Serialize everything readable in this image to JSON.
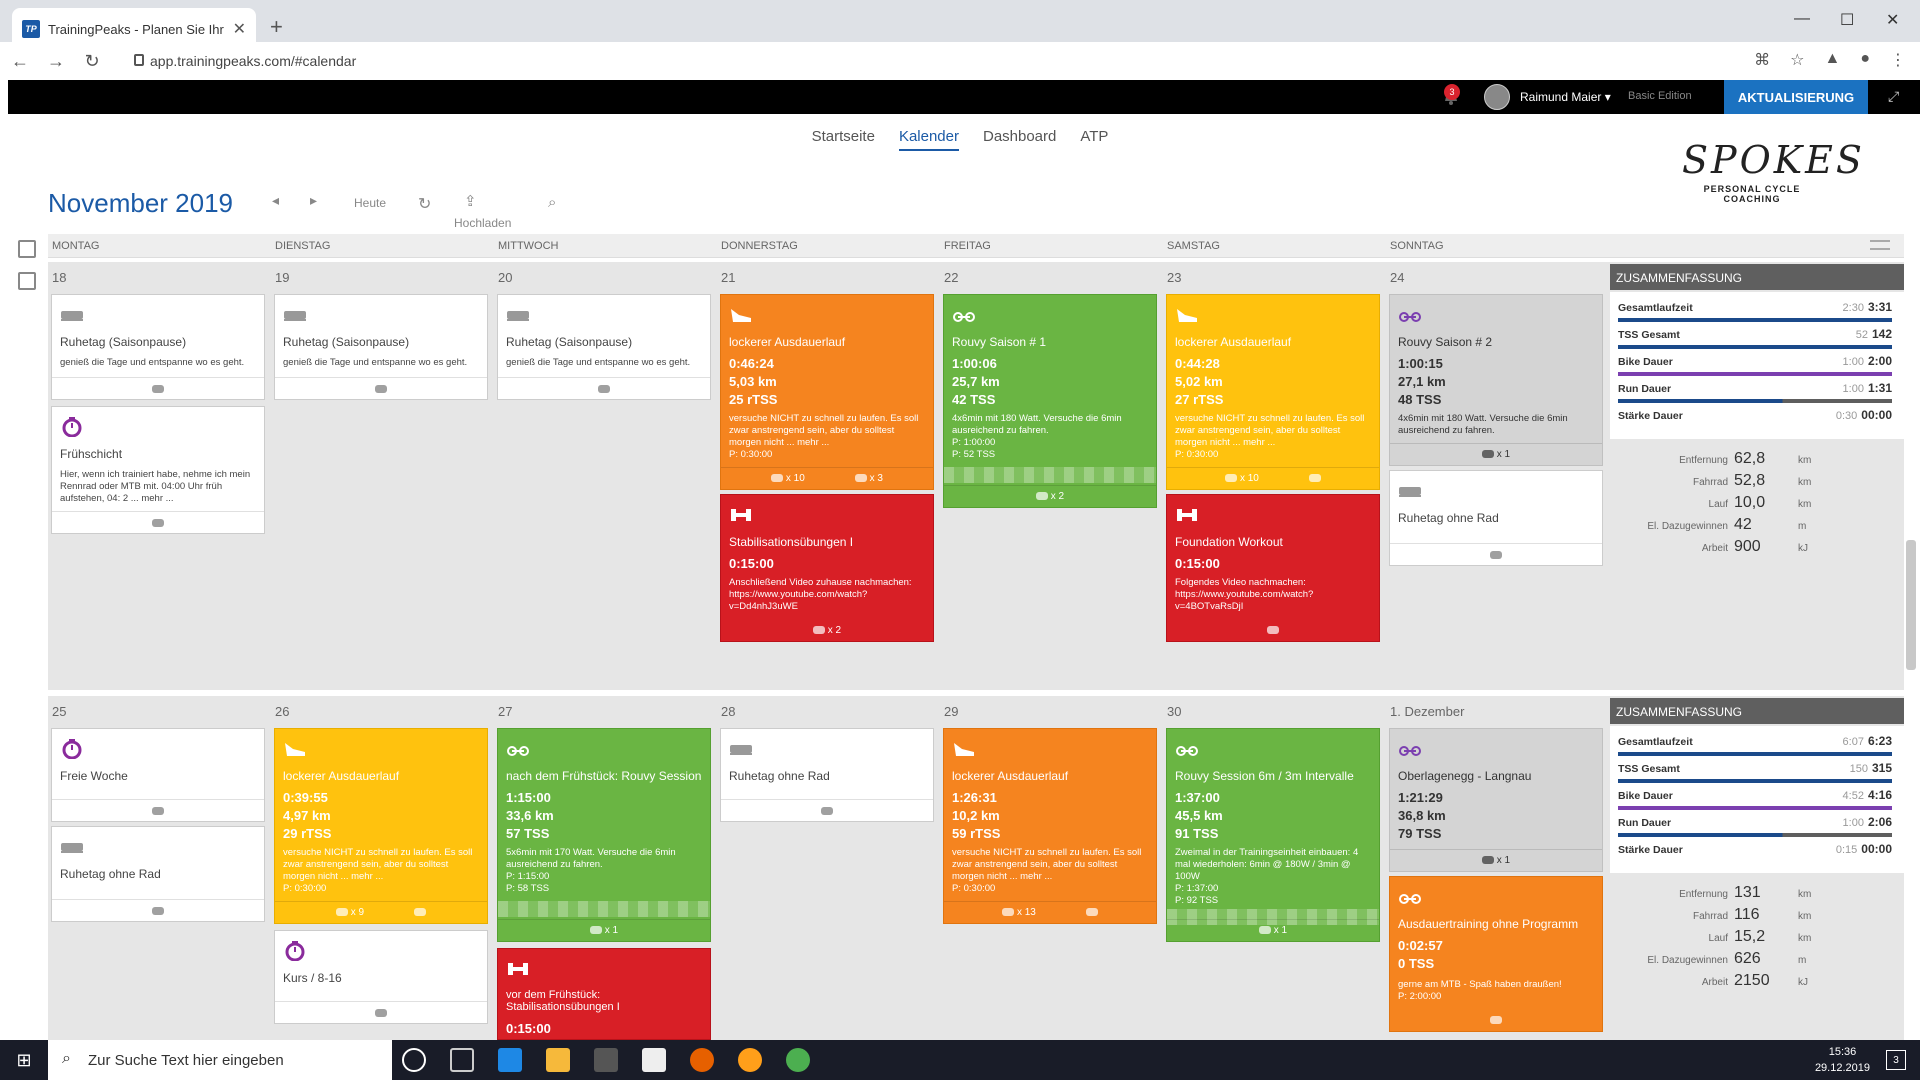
{
  "browser": {
    "tab_title": "TrainingPeaks - Planen Sie Ihr Tra",
    "favicon": "TP",
    "url": "app.trainingpeaks.com/#calendar"
  },
  "topbar": {
    "notifications": "3",
    "user": "Raimund Maier",
    "edition": "Basic Edition",
    "upgrade": "AKTUALISIERUNG"
  },
  "nav": [
    "Startseite",
    "Kalender",
    "Dashboard",
    "ATP"
  ],
  "logo": {
    "main": "SPOKES",
    "sub": "PERSONAL CYCLE COACHING"
  },
  "calendar": {
    "month": "November",
    "year": "2019",
    "today": "Heute",
    "upload": "Hochladen",
    "weekdays": [
      "MONTAG",
      "DIENSTAG",
      "MITTWOCH",
      "DONNERSTAG",
      "FREITAG",
      "SAMSTAG",
      "SONNTAG"
    ],
    "summary_label": "ZUSAMMENFASSUNG",
    "week1": {
      "days": [
        "18",
        "19",
        "20",
        "21",
        "22",
        "23",
        "24"
      ],
      "cards": [
        {
          "type": "rest",
          "title": "Ruhetag (Saisonpause)",
          "desc": "genieß die Tage und entspanne wo es geht."
        },
        {
          "type": "other",
          "title": "Frühschicht",
          "desc": "Hier, wenn ich trainiert habe, nehme ich mein Rennrad oder MTB mit. 04:00 Uhr früh aufstehen, 04: 2 ... mehr ..."
        },
        {
          "type": "rest",
          "title": "Ruhetag (Saisonpause)",
          "desc": "genieß die Tage und entspanne wo es geht."
        },
        {
          "type": "rest",
          "title": "Ruhetag (Saisonpause)",
          "desc": "genieß die Tage und entspanne wo es geht."
        },
        {
          "type": "run",
          "title": "lockerer Ausdauerlauf",
          "time": "0:46:24",
          "dist": "5,03",
          "dist_unit": "km",
          "tss": "25",
          "tss_unit": "rTSS",
          "desc": "versuche NICHT zu schnell zu laufen. Es soll zwar anstrengend sein, aber du solltest morgen nicht ... mehr ...",
          "plan": "P: 0:30:00",
          "foot1": "x 10",
          "foot2": "x 3"
        },
        {
          "type": "strength",
          "title": "Stabilisationsübungen I",
          "time": "0:15:00",
          "desc": "Anschließend Video zuhause nachmachen: https://www.youtube.com/watch?v=Dd4nhJ3uWE",
          "foot": "x 2"
        },
        {
          "type": "bike",
          "title": "Rouvy Saison # 1",
          "time": "1:00:06",
          "dist": "25,7",
          "dist_unit": "km",
          "tss": "42",
          "tss_unit": "TSS",
          "desc": "4x6min mit 180 Watt. Versuche die 6min ausreichend zu fahren.",
          "plan": "P: 1:00:00",
          "plan2": "P: 52  TSS",
          "foot": "x 2"
        },
        {
          "type": "run",
          "title": "lockerer Ausdauerlauf",
          "time": "0:44:28",
          "dist": "5,02",
          "dist_unit": "km",
          "tss": "27",
          "tss_unit": "rTSS",
          "desc": "versuche NICHT zu schnell zu laufen. Es soll zwar anstrengend sein, aber du solltest morgen nicht ... mehr ...",
          "plan": "P: 0:30:00",
          "foot1": "x 10"
        },
        {
          "type": "strength",
          "title": "Foundation Workout",
          "time": "0:15:00",
          "desc": "Folgendes Video nachmachen: https://www.youtube.com/watch?v=4BOTvaRsDjI"
        },
        {
          "type": "bike",
          "title": "Rouvy Saison # 2",
          "time": "1:00:15",
          "dist": "27,1",
          "dist_unit": "km",
          "tss": "48",
          "tss_unit": "TSS",
          "desc": "4x6min mit 180 Watt. Versuche die 6min ausreichend zu fahren.",
          "foot": "x 1"
        },
        {
          "type": "rest",
          "title": "Ruhetag ohne Rad"
        }
      ],
      "summary": {
        "rows": [
          {
            "label": "Gesamtlaufzeit",
            "planned": "2:30",
            "actual": "3:31"
          },
          {
            "label": "TSS Gesamt",
            "planned": "52",
            "actual": "142"
          },
          {
            "label": "Bike Dauer",
            "planned": "1:00",
            "actual": "2:00"
          },
          {
            "label": "Run Dauer",
            "planned": "1:00",
            "actual": "1:31"
          },
          {
            "label": "Stärke Dauer",
            "planned": "0:30",
            "actual": "00:00"
          }
        ],
        "totals": [
          {
            "label": "Entfernung",
            "value": "62,8",
            "unit": "km"
          },
          {
            "label": "Fahrrad",
            "value": "52,8",
            "unit": "km"
          },
          {
            "label": "Lauf",
            "value": "10,0",
            "unit": "km"
          },
          {
            "label": "El. Dazugewinnen",
            "value": "42",
            "unit": "m"
          },
          {
            "label": "Arbeit",
            "value": "900",
            "unit": "kJ"
          }
        ]
      }
    },
    "week2": {
      "days": [
        "25",
        "26",
        "27",
        "28",
        "29",
        "30",
        "1. Dezember"
      ],
      "cards": [
        {
          "type": "other",
          "title": "Freie Woche"
        },
        {
          "type": "rest",
          "title": "Ruhetag ohne Rad"
        },
        {
          "type": "run",
          "title": "lockerer Ausdauerlauf",
          "time": "0:39:55",
          "dist": "4,97",
          "dist_unit": "km",
          "tss": "29",
          "tss_unit": "rTSS",
          "desc": "versuche NICHT zu schnell zu laufen. Es soll zwar anstrengend sein, aber du solltest morgen nicht ... mehr ...",
          "plan": "P: 0:30:00",
          "foot1": "x 9"
        },
        {
          "type": "other",
          "title": "Kurs / 8-16"
        },
        {
          "type": "bike",
          "title": "nach dem Frühstück: Rouvy Session",
          "time": "1:15:00",
          "dist": "33,6",
          "dist_unit": "km",
          "tss": "57",
          "tss_unit": "TSS",
          "desc": "5x6min mit 170 Watt. Versuche die 6min ausreichend zu fahren.",
          "plan": "P: 1:15:00",
          "plan2": "P: 58  TSS",
          "foot": "x 1"
        },
        {
          "type": "strength",
          "title": "vor dem Frühstück: Stabilisationsübungen I",
          "time": "0:15:00"
        },
        {
          "type": "rest",
          "title": "Ruhetag ohne Rad"
        },
        {
          "type": "run",
          "title": "lockerer Ausdauerlauf",
          "time": "1:26:31",
          "dist": "10,2",
          "dist_unit": "km",
          "tss": "59",
          "tss_unit": "rTSS",
          "desc": "versuche NICHT zu schnell zu laufen. Es soll zwar anstrengend sein, aber du solltest morgen nicht ... mehr ...",
          "plan": "P: 0:30:00",
          "foot1": "x 13"
        },
        {
          "type": "bike",
          "title": "Rouvy Session 6m / 3m Intervalle",
          "time": "1:37:00",
          "dist": "45,5",
          "dist_unit": "km",
          "tss": "91",
          "tss_unit": "TSS",
          "desc": "Zweimal in der Trainingseinheit einbauen: 4 mal wiederholen: 6min @ 180W / 3min @ 100W",
          "plan": "P: 1:37:00",
          "plan2": "P: 92  TSS",
          "foot": "x 1"
        },
        {
          "type": "bike",
          "title": "Oberlagenegg - Langnau",
          "time": "1:21:29",
          "dist": "36,8",
          "dist_unit": "km",
          "tss": "79",
          "tss_unit": "TSS",
          "foot": "x 1"
        },
        {
          "type": "bike",
          "title": "Ausdauertraining ohne Programm",
          "time": "0:02:57",
          "tss": "0",
          "tss_unit": "TSS",
          "desc": "gerne am MTB - Spaß haben draußen!",
          "plan": "P: 2:00:00"
        }
      ],
      "summary": {
        "rows": [
          {
            "label": "Gesamtlaufzeit",
            "planned": "6:07",
            "actual": "6:23"
          },
          {
            "label": "TSS Gesamt",
            "planned": "150",
            "actual": "315"
          },
          {
            "label": "Bike Dauer",
            "planned": "4:52",
            "actual": "4:16"
          },
          {
            "label": "Run Dauer",
            "planned": "1:00",
            "actual": "2:06"
          },
          {
            "label": "Stärke Dauer",
            "planned": "0:15",
            "actual": "00:00"
          }
        ],
        "totals": [
          {
            "label": "Entfernung",
            "value": "131",
            "unit": "km"
          },
          {
            "label": "Fahrrad",
            "value": "116",
            "unit": "km"
          },
          {
            "label": "Lauf",
            "value": "15,2",
            "unit": "km"
          },
          {
            "label": "El. Dazugewinnen",
            "value": "626",
            "unit": "m"
          },
          {
            "label": "Arbeit",
            "value": "2150",
            "unit": "kJ"
          }
        ]
      }
    }
  },
  "taskbar": {
    "search_placeholder": "Zur Suche Text hier eingeben",
    "time": "15:36",
    "date": "29.12.2019",
    "badge": "3"
  }
}
